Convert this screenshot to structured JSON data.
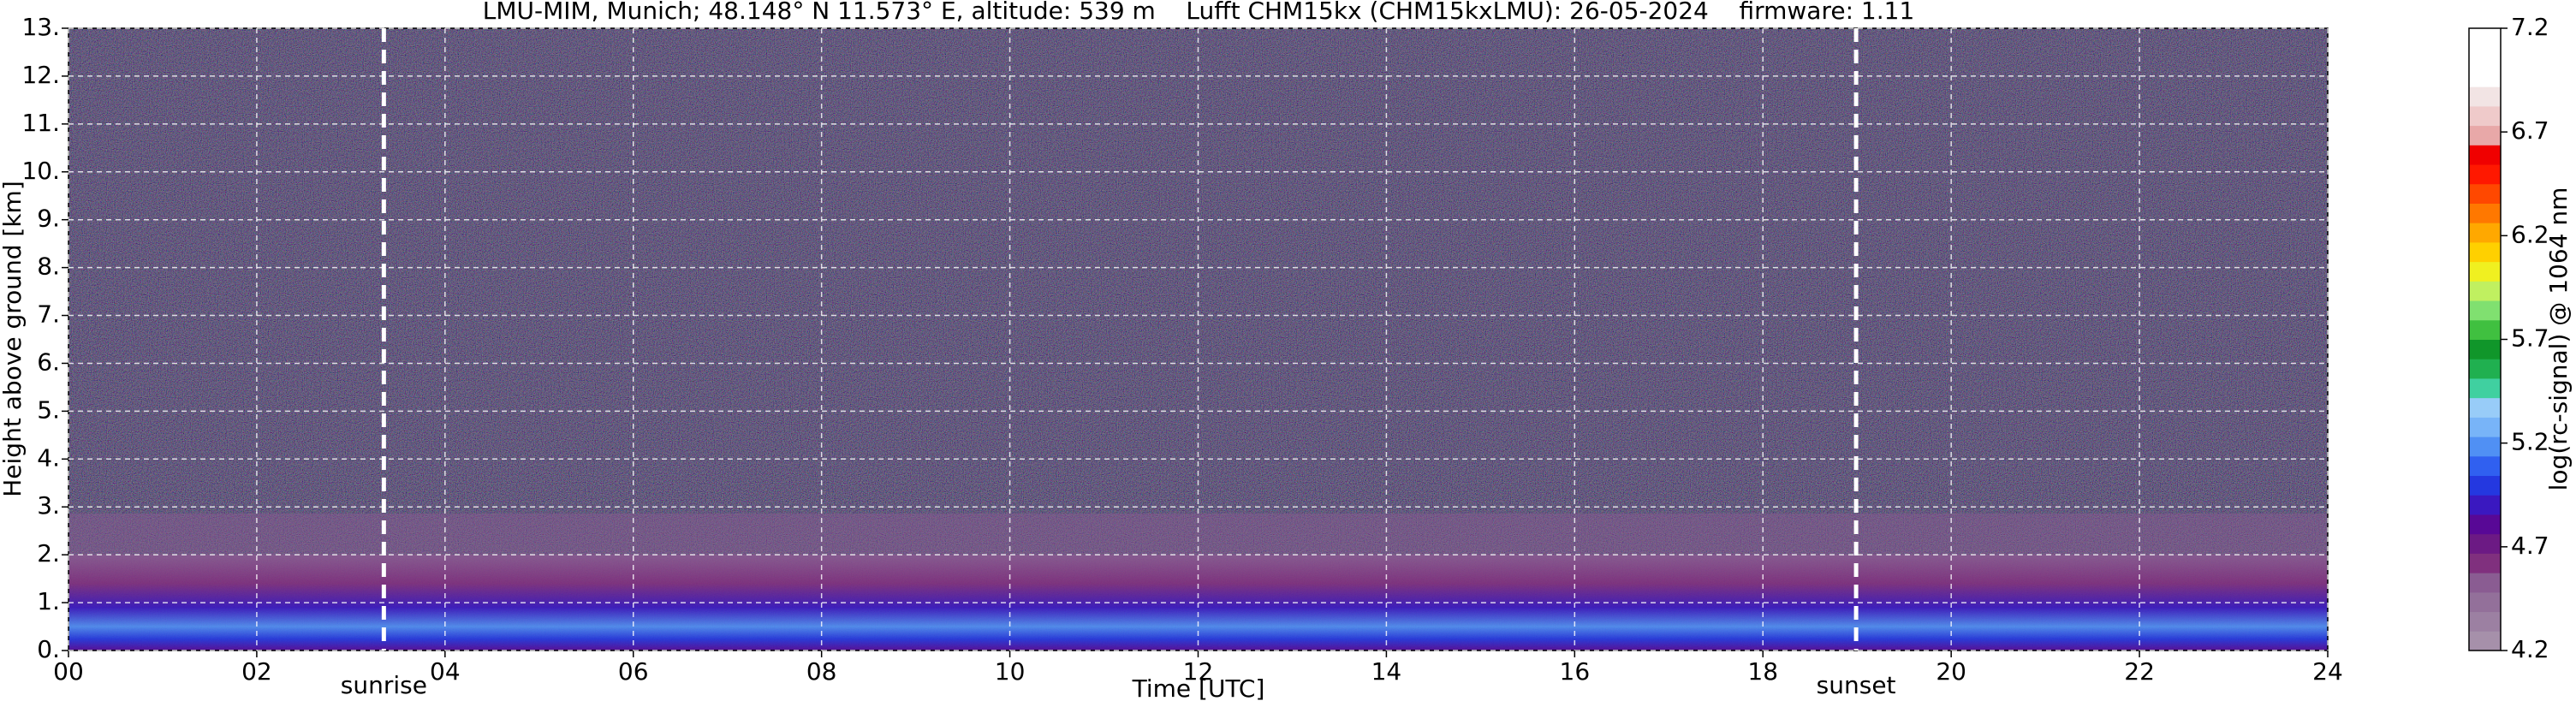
{
  "chart_data": {
    "type": "heatmap",
    "title": "LMU-MIM, Munich; 48.148° N 11.573° E, altitude: 539 m    Lufft CHM15kx (CHM15kxLMU): 26-05-2024    firmware: 1.11",
    "x_label": "Time [UTC]",
    "y_label": "Height above ground [km]",
    "colorbar_label": "log(rc-signal) @ 1064 nm",
    "xlim": [
      0,
      24
    ],
    "xticks": [
      {
        "value": 0,
        "label": "00"
      },
      {
        "value": 2,
        "label": "02"
      },
      {
        "value": 4,
        "label": "04"
      },
      {
        "value": 6,
        "label": "06"
      },
      {
        "value": 8,
        "label": "08"
      },
      10,
      12,
      14,
      16,
      18,
      20,
      22,
      24
    ],
    "ylim": [
      0,
      13
    ],
    "yticks": [
      {
        "value": 0,
        "label": "0."
      },
      {
        "value": 1,
        "label": "1."
      },
      {
        "value": 2,
        "label": "2."
      },
      {
        "value": 3,
        "label": "3."
      },
      {
        "value": 4,
        "label": "4."
      },
      {
        "value": 5,
        "label": "5."
      },
      {
        "value": 6,
        "label": "6."
      },
      {
        "value": 7,
        "label": "7."
      },
      {
        "value": 8,
        "label": "8."
      },
      {
        "value": 9,
        "label": "9."
      },
      {
        "value": 10,
        "label": "10."
      },
      {
        "value": 11,
        "label": "11."
      },
      {
        "value": 12,
        "label": "12."
      },
      {
        "value": 13,
        "label": "13."
      }
    ],
    "clim": [
      4.2,
      7.2
    ],
    "cticks": [
      4.2,
      4.7,
      5.2,
      5.7,
      6.2,
      6.7,
      7.2
    ],
    "colorscale": [
      "#a690aa",
      "#9c80a2",
      "#93709a",
      "#8a5c92",
      "#80307e",
      "#6c1a84",
      "#580896",
      "#3a18c0",
      "#2438e0",
      "#3060f0",
      "#5090f4",
      "#78b4f8",
      "#98ccf8",
      "#40d0a0",
      "#20b050",
      "#10962a",
      "#40c040",
      "#80e070",
      "#c0f060",
      "#f0f020",
      "#ffd000",
      "#ffa800",
      "#ff7800",
      "#ff4800",
      "#ff1800",
      "#f00000",
      "#e8a8a8",
      "#efcaca",
      "#f2e4e4",
      "#ffffff",
      "#ffffff",
      "#ffffff"
    ],
    "grid": true,
    "annotations": [
      {
        "text": "sunrise",
        "x": 3.35
      },
      {
        "text": "sunset",
        "x": 18.99
      }
    ]
  }
}
